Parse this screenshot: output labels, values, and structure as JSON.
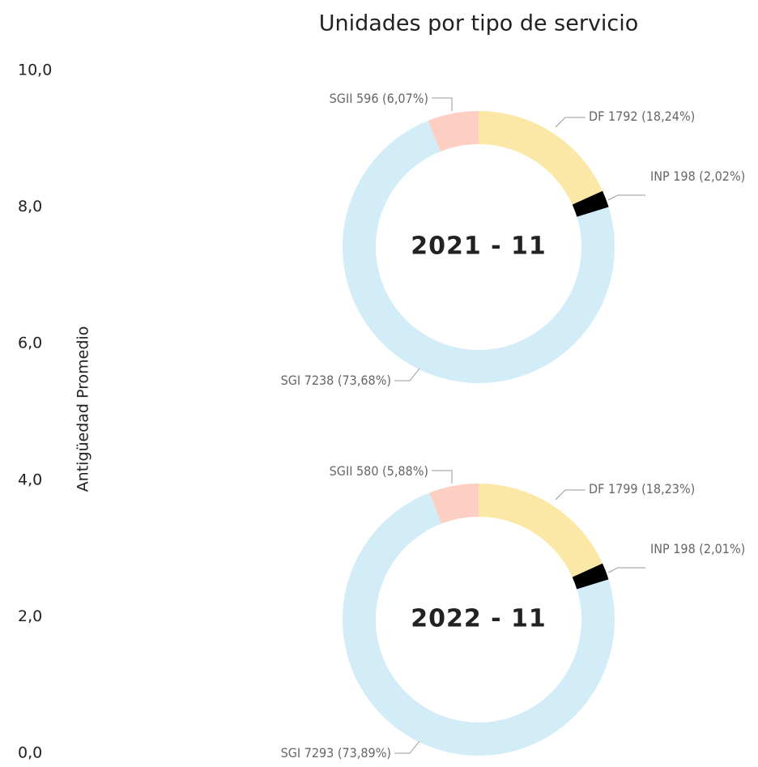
{
  "chart_data": [
    {
      "type": "axis",
      "y_label": "Antigüedad Promedio",
      "ylim": [
        0,
        10
      ],
      "yticks": [
        {
          "value": 0,
          "label": "0,0"
        },
        {
          "value": 2,
          "label": "2,0"
        },
        {
          "value": 4,
          "label": "4,0"
        },
        {
          "value": 6,
          "label": "6,0"
        },
        {
          "value": 8,
          "label": "8,0"
        },
        {
          "value": 10,
          "label": "10,0"
        }
      ]
    },
    {
      "type": "donut",
      "title": "Unidades por tipo de servicio",
      "center_label": "2021 - 11",
      "categories": [
        "DF",
        "INP",
        "SGI",
        "SGII"
      ],
      "colors": [
        "#fbe8a6",
        "#000000",
        "#d2edf7",
        "#fccfc2"
      ],
      "values": [
        1792,
        198,
        7238,
        596
      ],
      "value_labels": [
        "DF 1792 (18,24%)",
        "INP 198 (2,02%)",
        "SGI 7238 (73,68%)",
        "SGII 596 (6,07%)"
      ]
    },
    {
      "type": "donut",
      "center_label": "2022 - 11",
      "categories": [
        "DF",
        "INP",
        "SGI",
        "SGII"
      ],
      "colors": [
        "#fbe8a6",
        "#000000",
        "#d2edf7",
        "#fccfc2"
      ],
      "values": [
        1799,
        198,
        7293,
        580
      ],
      "value_labels": [
        "DF 1799 (18,23%)",
        "INP 198 (2,01%)",
        "SGI 7293 (73,89%)",
        "SGII 580 (5,88%)"
      ]
    }
  ]
}
